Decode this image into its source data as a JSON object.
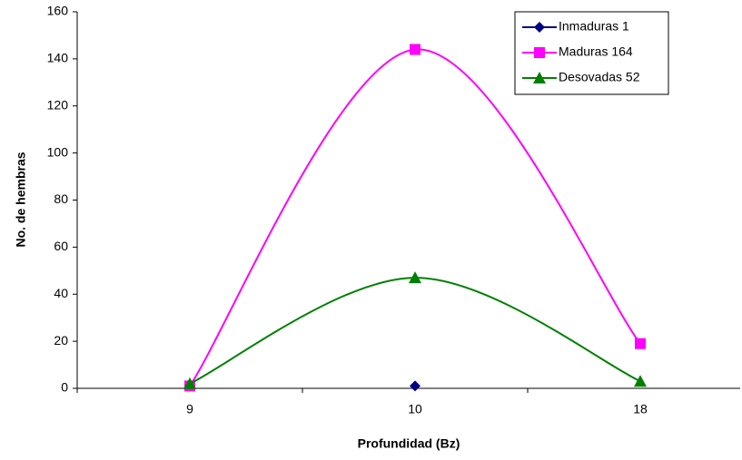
{
  "chart_data": {
    "type": "line",
    "smooth": true,
    "x_label": "Profundidad (Bz)",
    "y_label": "No. de hembras",
    "categories": [
      "9",
      "10",
      "18"
    ],
    "series": [
      {
        "name": "Inmaduras 1",
        "color": "#000080",
        "marker": "diamond",
        "values": [
          null,
          1,
          null
        ]
      },
      {
        "name": "Maduras 164",
        "color": "#ff00ff",
        "marker": "square",
        "values": [
          1,
          144,
          19
        ]
      },
      {
        "name": "Desovadas 52",
        "color": "#008000",
        "marker": "triangle",
        "values": [
          2,
          47,
          3
        ]
      }
    ],
    "ylim": [
      0,
      160
    ],
    "yticks": [
      0,
      20,
      40,
      60,
      80,
      100,
      120,
      140,
      160
    ]
  }
}
